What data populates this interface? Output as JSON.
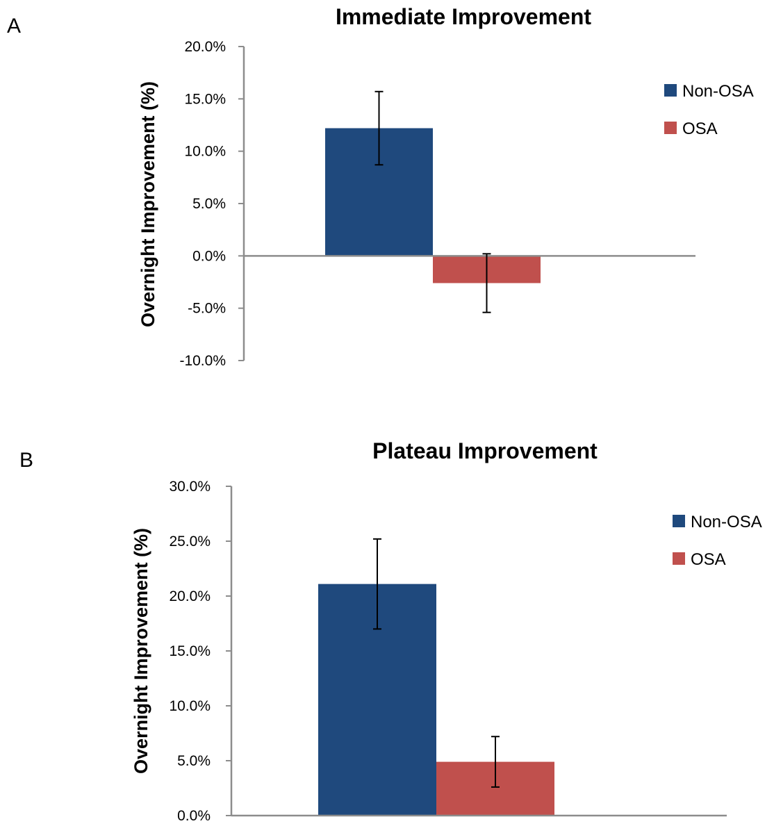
{
  "panels": [
    {
      "letter": "A"
    },
    {
      "letter": "B"
    }
  ],
  "chart_data": [
    {
      "type": "bar",
      "title": "Immediate Improvement",
      "xlabel": "",
      "ylabel": "Overnight Improvement (%)",
      "ylim": [
        -10,
        20
      ],
      "yticks": [
        20,
        15,
        10,
        5,
        0,
        -5,
        -10
      ],
      "ytick_labels": [
        "20.0%",
        "15.0%",
        "10.0%",
        "5.0%",
        "0.0%",
        "-5.0%",
        "-10.0%"
      ],
      "legend_position": "right",
      "grid": false,
      "series": [
        {
          "name": "Non-OSA",
          "color": "#1f497d",
          "value": 12.2,
          "error": 3.5
        },
        {
          "name": "OSA",
          "color": "#c0504d",
          "value": -2.6,
          "error": 2.8
        }
      ]
    },
    {
      "type": "bar",
      "title": "Plateau Improvement",
      "xlabel": "",
      "ylabel": "Overnight Improvement (%)",
      "ylim": [
        0,
        30
      ],
      "yticks": [
        30,
        25,
        20,
        15,
        10,
        5,
        0
      ],
      "ytick_labels": [
        "30.0%",
        "25.0%",
        "20.0%",
        "15.0%",
        "10.0%",
        "5.0%",
        "0.0%"
      ],
      "legend_position": "right",
      "grid": false,
      "series": [
        {
          "name": "Non-OSA",
          "color": "#1f497d",
          "value": 21.1,
          "error": 4.1
        },
        {
          "name": "OSA",
          "color": "#c0504d",
          "value": 4.9,
          "error": 2.3
        }
      ]
    }
  ]
}
